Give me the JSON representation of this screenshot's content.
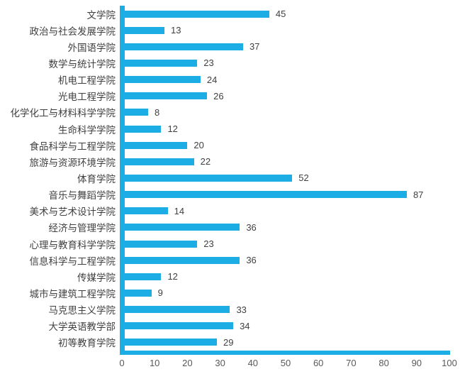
{
  "chart_data": {
    "type": "bar",
    "orientation": "horizontal",
    "title": "",
    "xlabel": "",
    "ylabel": "",
    "legend": null,
    "grid": false,
    "xlim": [
      0,
      100
    ],
    "x_ticks": [
      "0",
      "10",
      "20",
      "30",
      "40",
      "50",
      "60",
      "70",
      "80",
      "90",
      "100"
    ],
    "categories": [
      "文学院",
      "政治与社会发展学院",
      "外国语学院",
      "数学与统计学院",
      "机电工程学院",
      "光电工程学院",
      "化学化工与材料科学学院",
      "生命科学学院",
      "食品科学与工程学院",
      "旅游与资源环境学院",
      "体育学院",
      "音乐与舞蹈学院",
      "美术与艺术设计学院",
      "经济与管理学院",
      "心理与教育科学学院",
      "信息科学与工程学院",
      "传媒学院",
      "城市与建筑工程学院",
      "马克思主义学院",
      "大学英语教学部",
      "初等教育学院"
    ],
    "values": [
      45,
      13,
      37,
      23,
      24,
      26,
      8,
      12,
      20,
      22,
      52,
      87,
      14,
      36,
      23,
      36,
      12,
      9,
      33,
      34,
      29
    ],
    "value_labels_shown": true,
    "colors": {
      "bar": "#1CADE4",
      "axis_line": "#1CADE4",
      "category_label": "#404040",
      "value_label": "#404040",
      "tick_label": "#595959",
      "background": "#FFFFFF"
    }
  }
}
